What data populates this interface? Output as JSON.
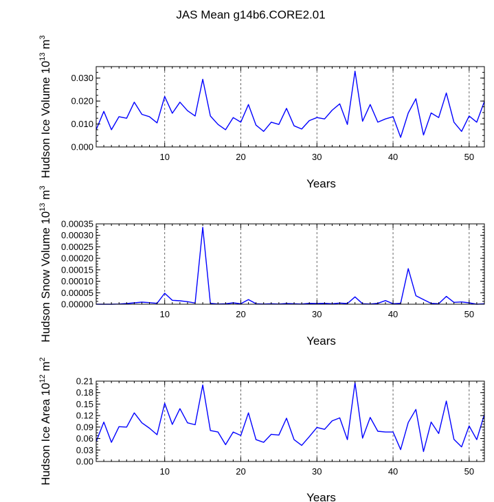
{
  "figure_title": "JAS Mean g14b6.CORE2.01",
  "line_color": "#0000ff",
  "chart_data": [
    {
      "type": "line",
      "title": "JAS Mean g14b6.CORE2.01",
      "xlabel": "Years",
      "ylabel_text": "Hudson Ice Volume 10",
      "ylabel_exp": "13",
      "ylabel_unit": " m",
      "ylabel_unit_exp": "3",
      "xlim": [
        1,
        52
      ],
      "ylim": [
        0,
        0.035
      ],
      "x_ticks": [
        10,
        20,
        30,
        40,
        50
      ],
      "y_ticks": [
        0,
        0.01,
        0.02,
        0.03
      ],
      "y_tick_labels": [
        "0.000",
        "0.010",
        "0.020",
        "0.030"
      ],
      "y_minor_step": 0.0025,
      "grid": "vertical dashed at major x ticks",
      "series": [
        {
          "name": "Hudson Ice Volume",
          "x": [
            1,
            2,
            3,
            4,
            5,
            6,
            7,
            8,
            9,
            10,
            11,
            12,
            13,
            14,
            15,
            16,
            17,
            18,
            19,
            20,
            21,
            22,
            23,
            24,
            25,
            26,
            27,
            28,
            29,
            30,
            31,
            32,
            33,
            34,
            35,
            36,
            37,
            38,
            39,
            40,
            41,
            42,
            43,
            44,
            45,
            46,
            47,
            48,
            49,
            50,
            51,
            52
          ],
          "values": [
            0.0075,
            0.0155,
            0.0075,
            0.0132,
            0.0125,
            0.0195,
            0.0142,
            0.0132,
            0.0105,
            0.022,
            0.0147,
            0.0195,
            0.0158,
            0.0135,
            0.0295,
            0.0135,
            0.0098,
            0.0075,
            0.0128,
            0.0108,
            0.0185,
            0.0095,
            0.0068,
            0.0108,
            0.0098,
            0.0168,
            0.0092,
            0.0078,
            0.0115,
            0.0128,
            0.0122,
            0.016,
            0.0188,
            0.0098,
            0.033,
            0.0112,
            0.0185,
            0.0108,
            0.0122,
            0.0132,
            0.0042,
            0.0148,
            0.021,
            0.0052,
            0.0148,
            0.0128,
            0.0235,
            0.0108,
            0.0068,
            0.0135,
            0.0108,
            0.0198
          ]
        }
      ]
    },
    {
      "type": "line",
      "xlabel": "Years",
      "ylabel_text": "Hudson Snow Volume 10",
      "ylabel_exp": "13",
      "ylabel_unit": " m",
      "ylabel_unit_exp": "3",
      "xlim": [
        1,
        52
      ],
      "ylim": [
        0,
        0.00035
      ],
      "x_ticks": [
        10,
        20,
        30,
        40,
        50
      ],
      "y_ticks": [
        0,
        5e-05,
        0.0001,
        0.00015,
        0.0002,
        0.00025,
        0.0003,
        0.00035
      ],
      "y_tick_labels": [
        "0.00000",
        "0.00005",
        "0.00010",
        "0.00015",
        "0.00020",
        "0.00025",
        "0.00030",
        "0.00035"
      ],
      "y_minor_step": 1.25e-05,
      "grid": "vertical dashed at major x ticks",
      "series": [
        {
          "name": "Hudson Snow Volume",
          "x": [
            1,
            2,
            3,
            4,
            5,
            6,
            7,
            8,
            9,
            10,
            11,
            12,
            13,
            14,
            15,
            16,
            17,
            18,
            19,
            20,
            21,
            22,
            23,
            24,
            25,
            26,
            27,
            28,
            29,
            30,
            31,
            32,
            33,
            34,
            35,
            36,
            37,
            38,
            39,
            40,
            41,
            42,
            43,
            44,
            45,
            46,
            47,
            48,
            49,
            50,
            51,
            52
          ],
          "values": [
            0,
            0,
            0,
            1e-06,
            3e-06,
            6e-06,
            9e-06,
            7e-06,
            4e-06,
            4.8e-05,
            1.7e-05,
            1.5e-05,
            1.1e-05,
            5e-06,
            0.000335,
            4e-06,
            1e-06,
            2e-06,
            6e-06,
            2e-06,
            2e-05,
            2e-06,
            1e-06,
            2e-06,
            1e-06,
            3e-06,
            2e-06,
            1e-06,
            4e-06,
            3e-06,
            4e-06,
            2e-06,
            5e-06,
            3e-06,
            3.2e-05,
            2e-06,
            1e-06,
            4e-06,
            1.6e-05,
            2e-06,
            4e-06,
            0.000155,
            3.7e-05,
            2e-05,
            4e-06,
            2e-06,
            3.4e-05,
            8e-06,
            1e-05,
            6e-06,
            0,
            2e-06
          ]
        }
      ]
    },
    {
      "type": "line",
      "xlabel": "Years",
      "ylabel_text": "Hudson Ice Area 10",
      "ylabel_exp": "12",
      "ylabel_unit": " m",
      "ylabel_unit_exp": "2",
      "xlim": [
        1,
        52
      ],
      "ylim": [
        0,
        0.21
      ],
      "x_ticks": [
        10,
        20,
        30,
        40,
        50
      ],
      "y_ticks": [
        0,
        0.03,
        0.06,
        0.09,
        0.12,
        0.15,
        0.18,
        0.21
      ],
      "y_tick_labels": [
        "0.00",
        "0.03",
        "0.06",
        "0.09",
        "0.12",
        "0.15",
        "0.18",
        "0.21"
      ],
      "y_minor_step": 0.0075,
      "grid": "vertical dashed at major x ticks",
      "series": [
        {
          "name": "Hudson Ice Area",
          "x": [
            1,
            2,
            3,
            4,
            5,
            6,
            7,
            8,
            9,
            10,
            11,
            12,
            13,
            14,
            15,
            16,
            17,
            18,
            19,
            20,
            21,
            22,
            23,
            24,
            25,
            26,
            27,
            28,
            29,
            30,
            31,
            32,
            33,
            34,
            35,
            36,
            37,
            38,
            39,
            40,
            41,
            42,
            43,
            44,
            45,
            46,
            47,
            48,
            49,
            50,
            51,
            52
          ],
          "values": [
            0.052,
            0.103,
            0.05,
            0.091,
            0.09,
            0.127,
            0.101,
            0.087,
            0.07,
            0.152,
            0.097,
            0.138,
            0.101,
            0.096,
            0.2,
            0.081,
            0.077,
            0.044,
            0.077,
            0.068,
            0.127,
            0.057,
            0.05,
            0.071,
            0.069,
            0.113,
            0.057,
            0.042,
            0.065,
            0.089,
            0.084,
            0.106,
            0.114,
            0.057,
            0.206,
            0.061,
            0.115,
            0.079,
            0.077,
            0.077,
            0.031,
            0.102,
            0.136,
            0.026,
            0.103,
            0.073,
            0.158,
            0.058,
            0.038,
            0.093,
            0.057,
            0.123
          ]
        }
      ]
    }
  ]
}
